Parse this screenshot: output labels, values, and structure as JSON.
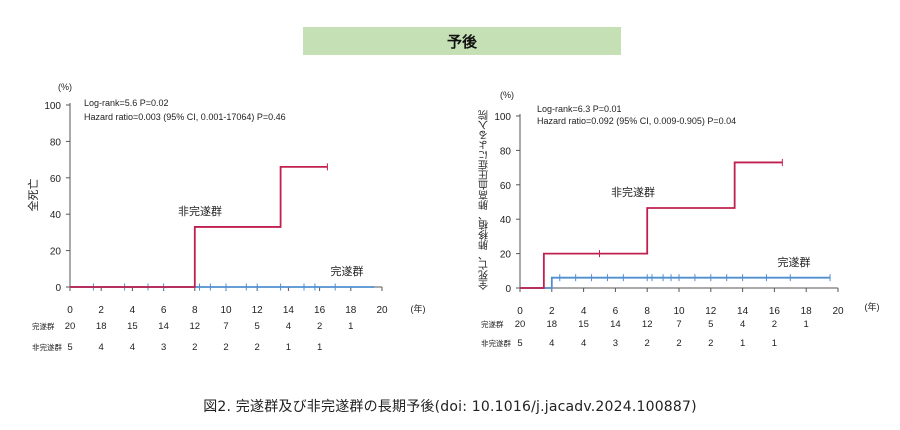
{
  "banner": "予後",
  "caption": "図2.  完遂群及び非完遂群の長期予後(doi: 10.1016/j.jacadv.2024.100887)",
  "chart_data": [
    {
      "type": "line",
      "step": true,
      "ylabel": "全死亡",
      "y_unit": "(%)",
      "x_unit": "(年)",
      "xlim": [
        0,
        20
      ],
      "ylim": [
        0,
        100
      ],
      "xticks": [
        0,
        2,
        4,
        6,
        8,
        10,
        12,
        14,
        16,
        18,
        20
      ],
      "yticks": [
        0,
        20,
        40,
        60,
        80,
        100
      ],
      "stats": [
        "Log-rank=5.6 P=0.02",
        "Hazard ratio=0.003 (95% CI, 0.001-17064) P=0.46"
      ],
      "series": [
        {
          "name": "非完遂群",
          "color": "#c0204e",
          "x": [
            0,
            8,
            8,
            13.5,
            13.5,
            16.5
          ],
          "y": [
            0,
            0,
            33,
            33,
            66,
            66
          ],
          "censor_x": [
            16.5
          ]
        },
        {
          "name": "完遂群",
          "color": "#4f8fd0",
          "x": [
            0,
            19.5
          ],
          "y": [
            0,
            0
          ],
          "censor_x": [
            1.5,
            3.5,
            5,
            6,
            8.3,
            9,
            10,
            11.3,
            12,
            13.5,
            15,
            15.7,
            17
          ]
        }
      ],
      "risk_table": {
        "x": [
          0,
          2,
          4,
          6,
          8,
          10,
          12,
          14,
          16,
          18
        ],
        "rows": [
          {
            "label": "完遂群",
            "values": [
              "20",
              "18",
              "15",
              "14",
              "12",
              "7",
              "5",
              "4",
              "2",
              "1"
            ]
          },
          {
            "label": "非完遂群",
            "values": [
              "5",
              "4",
              "4",
              "3",
              "2",
              "2",
              "2",
              "1",
              "1",
              ""
            ]
          }
        ]
      }
    },
    {
      "type": "line",
      "step": true,
      "ylabel": "全死亡、肺移植、肺高血圧症による入院",
      "y_unit": "(%)",
      "x_unit": "(年)",
      "xlim": [
        0,
        20
      ],
      "ylim": [
        0,
        100
      ],
      "xticks": [
        0,
        2,
        4,
        6,
        8,
        10,
        12,
        14,
        16,
        18,
        20
      ],
      "yticks": [
        0,
        20,
        40,
        60,
        80,
        100
      ],
      "stats": [
        "Log-rank=6.3 P=0.01",
        "Hazard ratio=0.092 (95% CI, 0.009-0.905) P=0.04"
      ],
      "series": [
        {
          "name": "非完遂群",
          "color": "#c0204e",
          "x": [
            0,
            1.5,
            1.5,
            8,
            8,
            13.5,
            13.5,
            16.5
          ],
          "y": [
            0,
            0,
            20,
            20,
            46.5,
            46.5,
            73,
            73
          ],
          "censor_x": [
            5,
            16.5
          ]
        },
        {
          "name": "完遂群",
          "color": "#4f8fd0",
          "x": [
            0,
            2,
            2,
            19.5
          ],
          "y": [
            0,
            0,
            6,
            6
          ],
          "censor_x": [
            2.5,
            3.5,
            4.5,
            5.5,
            6.5,
            8,
            8.3,
            9,
            9.5,
            10,
            11,
            12,
            13,
            14,
            15.5,
            17,
            19.5
          ]
        }
      ],
      "risk_table": {
        "x": [
          0,
          2,
          4,
          6,
          8,
          10,
          12,
          14,
          16,
          18
        ],
        "rows": [
          {
            "label": "完遂群",
            "values": [
              "20",
              "18",
              "15",
              "14",
              "12",
              "7",
              "5",
              "4",
              "2",
              "1"
            ]
          },
          {
            "label": "非完遂群",
            "values": [
              "5",
              "4",
              "4",
              "3",
              "2",
              "2",
              "2",
              "1",
              "1",
              ""
            ]
          }
        ]
      }
    }
  ]
}
